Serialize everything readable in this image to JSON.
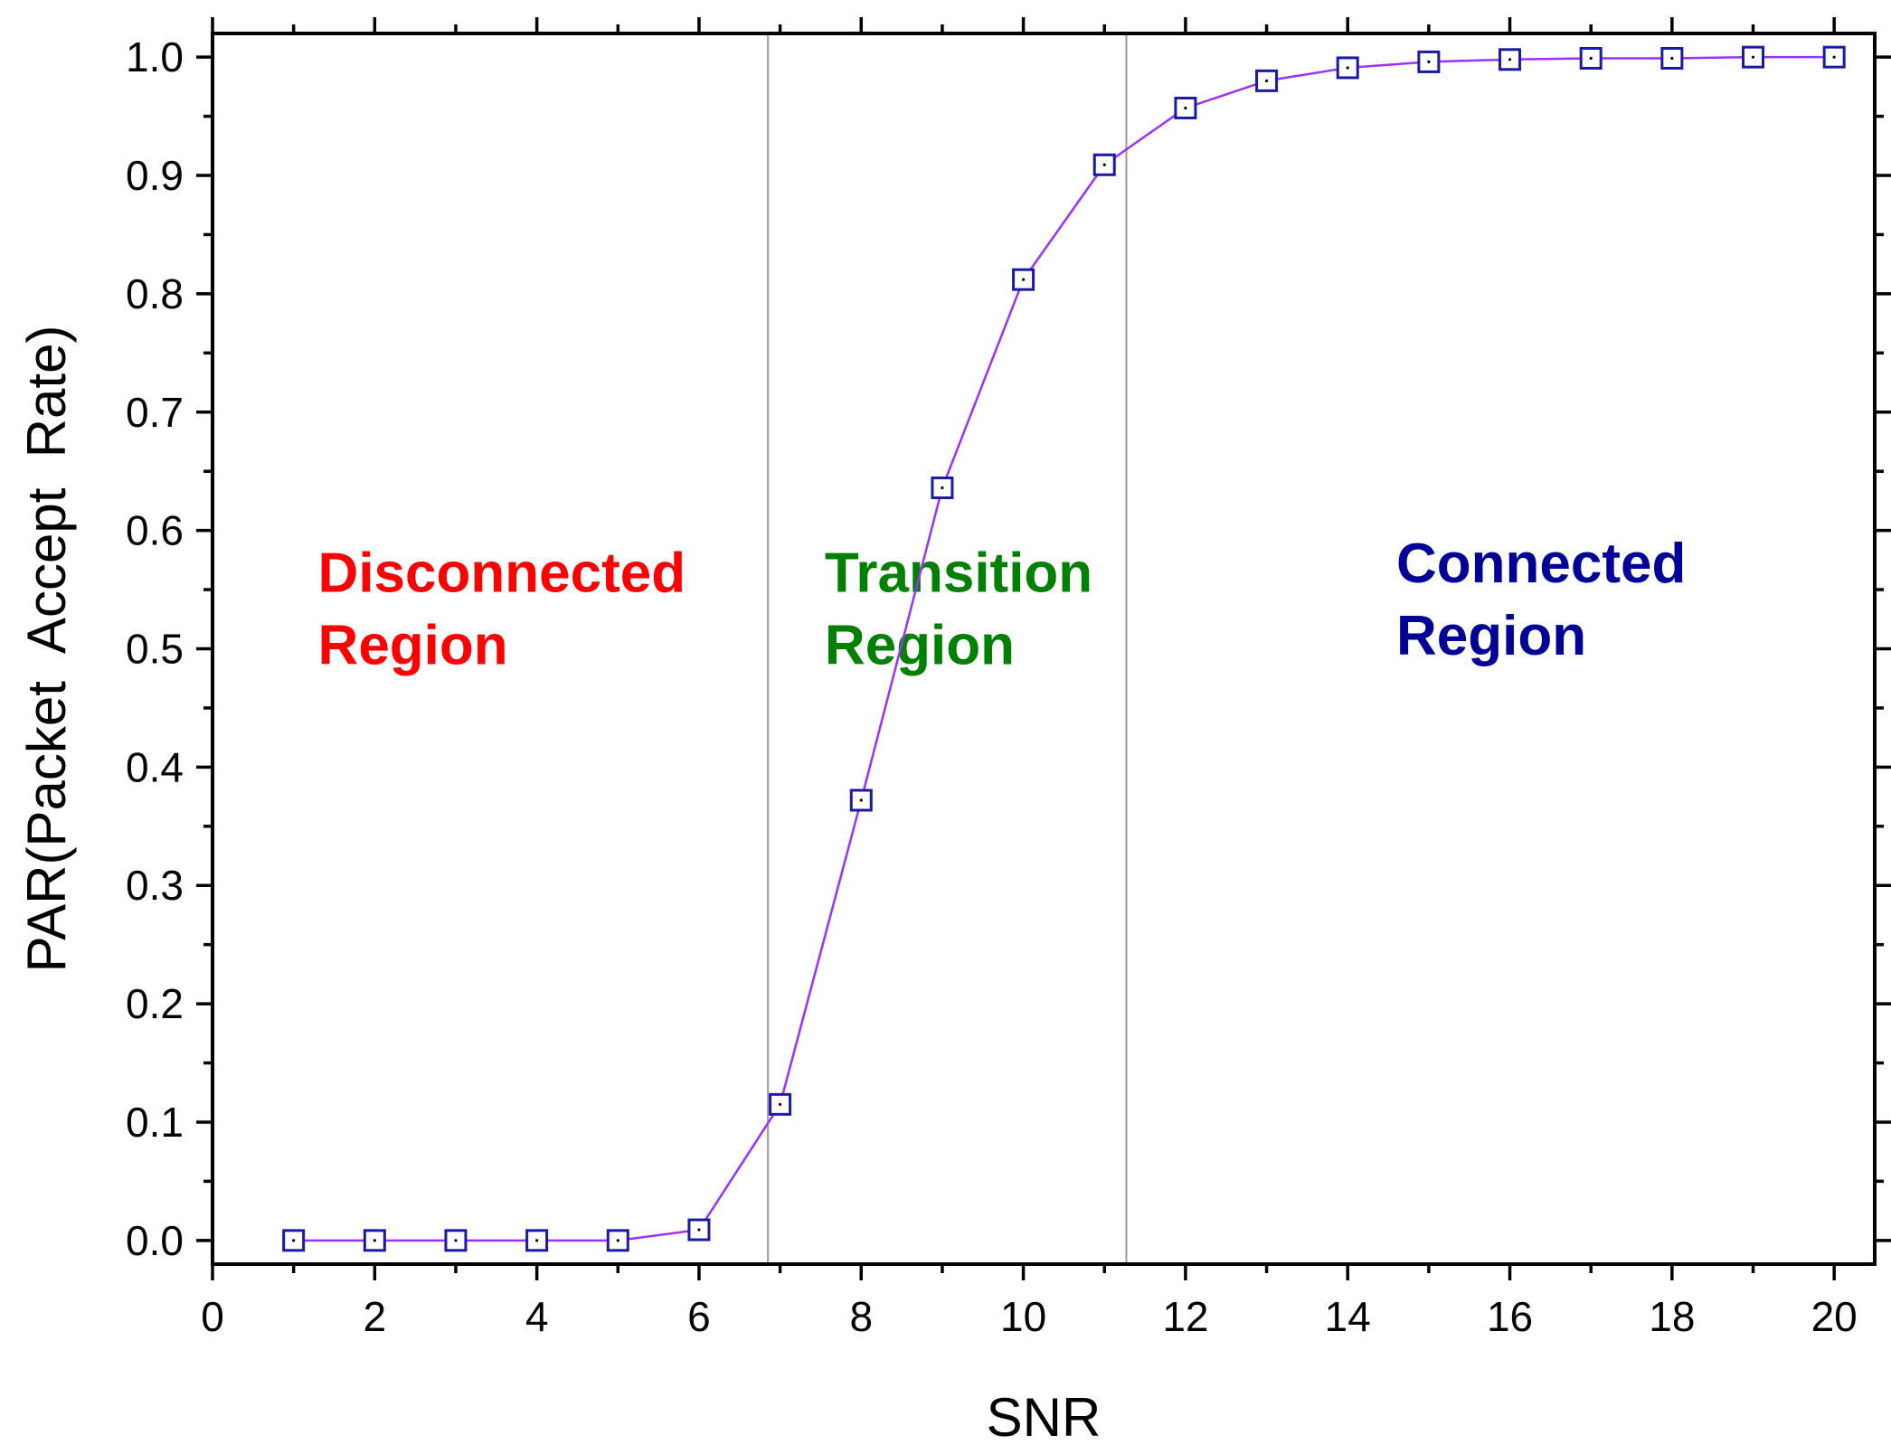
{
  "chart_data": {
    "type": "line",
    "xlabel": "SNR",
    "ylabel": "PAR(Packet  Accept  Rate)",
    "xlim": [
      0,
      20.5
    ],
    "ylim": [
      -0.02,
      1.02
    ],
    "x_ticks": [
      0,
      2,
      4,
      6,
      8,
      10,
      12,
      14,
      16,
      18,
      20
    ],
    "x_tick_labels": [
      "0",
      "2",
      "4",
      "6",
      "8",
      "10",
      "12",
      "14",
      "16",
      "18",
      "20"
    ],
    "y_ticks": [
      0.0,
      0.1,
      0.2,
      0.3,
      0.4,
      0.5,
      0.6,
      0.7,
      0.8,
      0.9,
      1.0
    ],
    "y_tick_labels": [
      "0.0",
      "0.1",
      "0.2",
      "0.3",
      "0.4",
      "0.5",
      "0.6",
      "0.7",
      "0.8",
      "0.9",
      "1.0"
    ],
    "grid": false,
    "series": [
      {
        "x": [
          1,
          2,
          3,
          4,
          5,
          6,
          7,
          8,
          9,
          10,
          11,
          12,
          13,
          14,
          15,
          16,
          17,
          18,
          19,
          20
        ],
        "values": [
          0.0,
          0.0,
          0.0,
          0.0,
          0.0,
          0.009,
          0.115,
          0.372,
          0.636,
          0.812,
          0.909,
          0.957,
          0.98,
          0.991,
          0.996,
          0.998,
          0.999,
          0.999,
          1.0,
          1.0
        ],
        "line_color": "#9b30ff",
        "marker": "open-square-with-dot",
        "marker_color": "#1a1aa6"
      }
    ],
    "boundaries": [
      6.85,
      11.27
    ],
    "boundary_color": "#9a9a9a",
    "annotations": [
      {
        "lines": [
          "Disconnected",
          "Region"
        ],
        "color": "#ff0000",
        "x": 1.3,
        "y": 0.548
      },
      {
        "lines": [
          "Transition",
          "Region"
        ],
        "color": "#008000",
        "x": 7.55,
        "y": 0.548
      },
      {
        "lines": [
          "Connected",
          "Region"
        ],
        "color": "#000099",
        "x": 14.6,
        "y": 0.556
      }
    ]
  }
}
